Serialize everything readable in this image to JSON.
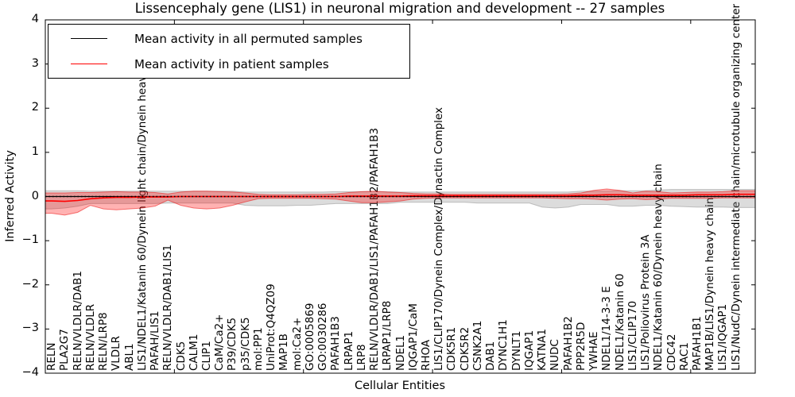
{
  "legend": {
    "entries": [
      {
        "label": "Mean activity in all permuted samples",
        "color": "#000000"
      },
      {
        "label": "Mean activity in patient samples",
        "color": "#ff0000"
      }
    ]
  },
  "chart_data": {
    "type": "line",
    "title": "Lissencephaly gene (LIS1) in neuronal migration and development -- 27 samples",
    "xlabel": "Cellular Entities",
    "ylabel": "Inferred Activity",
    "ylim": [
      -4,
      4
    ],
    "x_range": [
      0,
      55
    ],
    "x_tick_values": [
      10,
      20,
      30,
      40,
      50
    ],
    "y_tick_values": [
      4,
      3,
      2,
      1,
      0,
      -1,
      -2,
      -3,
      -4
    ],
    "y_tick_labels": [
      "4",
      "3",
      "2",
      "1",
      "0",
      "−1",
      "−2",
      "−3",
      "−4"
    ],
    "grid": false,
    "legend_position": "upper left",
    "categories": [
      "RELN",
      "PLA2G7",
      "RELN/VLDLR/DAB1",
      "RELN/VLDLR",
      "RELN/LRP8",
      "VLDLR",
      "ABL1",
      "LIS1/NDEL1/Katanin 60/Dynein light chain/Dynein heavy chain",
      "PAFAH/LIS1",
      "RELN/VLDLR/DAB1/LIS1",
      "CDK5",
      "CALM1",
      "CLIP1",
      "CaM/Ca2+",
      "P39/CDK5",
      "p35/CDK5",
      "mol:PP1",
      "UniProt:Q4QZ09",
      "MAP1B",
      "mol:Ca2+",
      "GO:0005869",
      "GO:0030286",
      "PAFAH1B3",
      "LRPAP1",
      "LRP8",
      "RELN/VLDLR/DAB1/LIS1/PAFAH1B2/PAFAH1B3",
      "LRPAP1/LRP8",
      "NDEL1",
      "IQGAP1/CaM",
      "RHOA",
      "LIS1/CLIP170/Dynein Complex/Dynactin Complex",
      "CDK5R1",
      "CDK5R2",
      "CSNK2A1",
      "DAB1",
      "DYNC1H1",
      "DYNLT1",
      "IQGAP1",
      "KATNA1",
      "NUDC",
      "PAFAH1B2",
      "PPP2R5D",
      "YWHAE",
      "NDEL1/14-3-3 E",
      "NDEL1/Katanin 60",
      "LIS1/CLIP170",
      "LIS1/Poliovirus Protein 3A",
      "NDEL1/Katanin 60/Dynein heavy chain",
      "CDC42",
      "RAC1",
      "PAFAH1B1",
      "MAP1B/LIS1/Dynein heavy chain",
      "LIS1/IQGAP1",
      "LIS1/NudC/Dynein intermediate chain/microtubule organizing center"
    ],
    "series": [
      {
        "name": "Mean activity in all permuted samples",
        "color": "#000000",
        "style": "solid-with-dotted-overlay",
        "values": [
          0,
          0,
          0,
          0,
          0,
          0,
          0,
          0,
          0,
          0,
          0,
          0,
          0,
          0,
          0,
          0,
          0,
          0,
          0,
          0,
          0,
          0,
          0,
          0,
          0,
          0,
          0,
          0,
          0,
          0,
          0,
          0,
          0,
          0,
          0,
          0,
          0,
          0,
          0,
          0,
          0,
          0,
          0,
          0,
          0,
          0,
          0,
          0,
          0,
          0,
          0,
          0,
          0,
          0
        ]
      },
      {
        "name": "Mean activity in patient samples",
        "color": "#ff0000",
        "style": "solid",
        "values": [
          -0.1,
          -0.11,
          -0.09,
          -0.05,
          -0.03,
          -0.02,
          -0.02,
          -0.01,
          -0.01,
          -0.01,
          0,
          0,
          0,
          0,
          0,
          0,
          0,
          0,
          0,
          0,
          0,
          0,
          0,
          0.01,
          0.01,
          0.01,
          0.01,
          0.01,
          0.02,
          0.02,
          0.02,
          0.02,
          0.02,
          0.02,
          0.02,
          0.02,
          0.02,
          0.02,
          0.02,
          0.02,
          0.02,
          0.03,
          0.03,
          0.04,
          0.04,
          0.03,
          0.03,
          0.03,
          0.03,
          0.03,
          0.04,
          0.04,
          0.04,
          0.05
        ]
      }
    ],
    "bands": [
      {
        "name": "permuted samples range",
        "fill": "rgba(130,130,130,0.28)",
        "edge": "rgba(130,130,130,0.45)",
        "upper": [
          0.13,
          0.13,
          0.13,
          0.12,
          0.12,
          0.12,
          0.12,
          0.12,
          0.12,
          0.12,
          0.12,
          0.12,
          0.12,
          0.12,
          0.12,
          0.1,
          0.1,
          0.1,
          0.1,
          0.1,
          0.1,
          0.1,
          0.11,
          0.11,
          0.11,
          0.11,
          0.11,
          0.1,
          0.1,
          0.1,
          0.1,
          0.1,
          0.1,
          0.1,
          0.1,
          0.1,
          0.1,
          0.1,
          0.1,
          0.1,
          0.1,
          0.12,
          0.12,
          0.12,
          0.13,
          0.13,
          0.13,
          0.15,
          0.16,
          0.16,
          0.16,
          0.16,
          0.16,
          0.16
        ],
        "lower": [
          -0.28,
          -0.26,
          -0.22,
          -0.16,
          -0.16,
          -0.16,
          -0.16,
          -0.16,
          -0.16,
          -0.15,
          -0.15,
          -0.15,
          -0.15,
          -0.15,
          -0.15,
          -0.2,
          -0.21,
          -0.21,
          -0.21,
          -0.2,
          -0.2,
          -0.18,
          -0.16,
          -0.16,
          -0.16,
          -0.16,
          -0.16,
          -0.13,
          -0.13,
          -0.13,
          -0.13,
          -0.13,
          -0.13,
          -0.15,
          -0.15,
          -0.15,
          -0.15,
          -0.15,
          -0.24,
          -0.26,
          -0.24,
          -0.18,
          -0.18,
          -0.18,
          -0.22,
          -0.22,
          -0.2,
          -0.2,
          -0.22,
          -0.23,
          -0.24,
          -0.24,
          -0.24,
          -0.25
        ]
      },
      {
        "name": "patient samples range",
        "fill": "rgba(255,0,0,0.30)",
        "edge": "rgba(235,0,0,0.50)",
        "upper": [
          0.08,
          0.08,
          0.09,
          0.09,
          0.1,
          0.11,
          0.1,
          0.1,
          0.09,
          0.06,
          0.1,
          0.12,
          0.12,
          0.11,
          0.1,
          0.08,
          0.05,
          0.04,
          0.04,
          0.04,
          0.05,
          0.05,
          0.06,
          0.09,
          0.11,
          0.12,
          0.1,
          0.09,
          0.07,
          0.06,
          0.06,
          0.05,
          0.05,
          0.05,
          0.05,
          0.05,
          0.05,
          0.05,
          0.05,
          0.05,
          0.06,
          0.08,
          0.14,
          0.17,
          0.14,
          0.08,
          0.12,
          0.11,
          0.08,
          0.09,
          0.1,
          0.1,
          0.11,
          0.13
        ],
        "lower": [
          -0.38,
          -0.42,
          -0.36,
          -0.2,
          -0.28,
          -0.3,
          -0.28,
          -0.26,
          -0.22,
          -0.08,
          -0.2,
          -0.26,
          -0.28,
          -0.26,
          -0.2,
          -0.12,
          -0.05,
          -0.04,
          -0.04,
          -0.04,
          -0.04,
          -0.05,
          -0.06,
          -0.1,
          -0.14,
          -0.14,
          -0.12,
          -0.1,
          -0.06,
          -0.04,
          -0.03,
          -0.03,
          -0.03,
          -0.03,
          -0.03,
          -0.03,
          -0.03,
          -0.03,
          -0.03,
          -0.04,
          -0.05,
          -0.05,
          -0.06,
          -0.08,
          -0.06,
          -0.05,
          -0.07,
          -0.06,
          -0.04,
          -0.04,
          -0.04,
          -0.04,
          -0.03,
          -0.03
        ]
      }
    ]
  }
}
